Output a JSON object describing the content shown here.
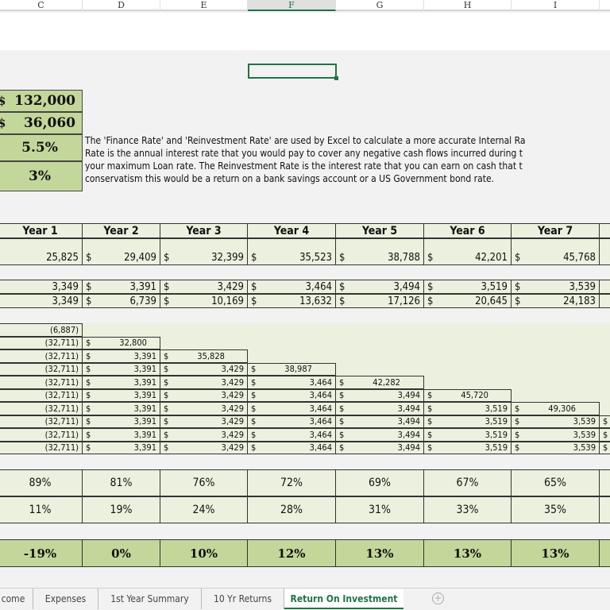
{
  "columns": [
    "C",
    "D",
    "E",
    "F",
    "G",
    "H",
    "I"
  ],
  "selected_column": "F",
  "inputs": [
    {
      "currency": "$",
      "value": "132,000"
    },
    {
      "currency": "$",
      "value": "36,060"
    },
    {
      "currency": "",
      "value": "5.5%"
    },
    {
      "currency": "",
      "value": "3%"
    }
  ],
  "note_lines": [
    "The 'Finance Rate' and 'Reinvestment Rate' are used by Excel to calculate a more accurate Internal Ra",
    "Rate is the annual interest rate that you would pay to cover any negative cash flows incurred during t",
    "your maximum Loan rate.  The Reinvestment Rate is the interest rate that you can earn on cash that t",
    "conservatism this would be a return on a bank savings account or a US Government bond rate."
  ],
  "years": [
    "Year 1",
    "Year 2",
    "Year 3",
    "Year 4",
    "Year 5",
    "Year 6",
    "Year 7"
  ],
  "equity_row": [
    "25,825",
    "29,409",
    "32,399",
    "35,523",
    "38,788",
    "42,201",
    "45,768"
  ],
  "cashflow_row": [
    "3,349",
    "3,391",
    "3,429",
    "3,464",
    "3,494",
    "3,519",
    "3,539"
  ],
  "cumulative_row": [
    "3,349",
    "6,739",
    "10,169",
    "13,632",
    "17,126",
    "20,645",
    "24,183"
  ],
  "cashflow_matrix": [
    [
      "(6,887)"
    ],
    [
      "(32,711)",
      "32,800"
    ],
    [
      "(32,711)",
      "3,391",
      "35,828"
    ],
    [
      "(32,711)",
      "3,391",
      "3,429",
      "38,987"
    ],
    [
      "(32,711)",
      "3,391",
      "3,429",
      "3,464",
      "42,282"
    ],
    [
      "(32,711)",
      "3,391",
      "3,429",
      "3,464",
      "3,494",
      "45,720"
    ],
    [
      "(32,711)",
      "3,391",
      "3,429",
      "3,464",
      "3,494",
      "3,519",
      "49,306"
    ],
    [
      "(32,711)",
      "3,391",
      "3,429",
      "3,464",
      "3,494",
      "3,519",
      "3,539",
      "$"
    ],
    [
      "(32,711)",
      "3,391",
      "3,429",
      "3,464",
      "3,494",
      "3,519",
      "3,539",
      "$"
    ],
    [
      "(32,711)",
      "3,391",
      "3,429",
      "3,464",
      "3,494",
      "3,519",
      "3,539",
      "$"
    ]
  ],
  "pct_row_1": [
    "89%",
    "81%",
    "76%",
    "72%",
    "69%",
    "67%",
    "65%"
  ],
  "pct_row_2": [
    "11%",
    "19%",
    "24%",
    "28%",
    "31%",
    "33%",
    "35%"
  ],
  "irr_row": [
    "-19%",
    "0%",
    "10%",
    "12%",
    "13%",
    "13%",
    "13%"
  ],
  "sheet_tabs": [
    "come",
    "Expenses",
    "1st Year Summary",
    "10 Yr Returns",
    "Return On Investment"
  ],
  "active_tab": "Return On Investment",
  "add_sheet_icon": "+",
  "currency_symbol": "$"
}
